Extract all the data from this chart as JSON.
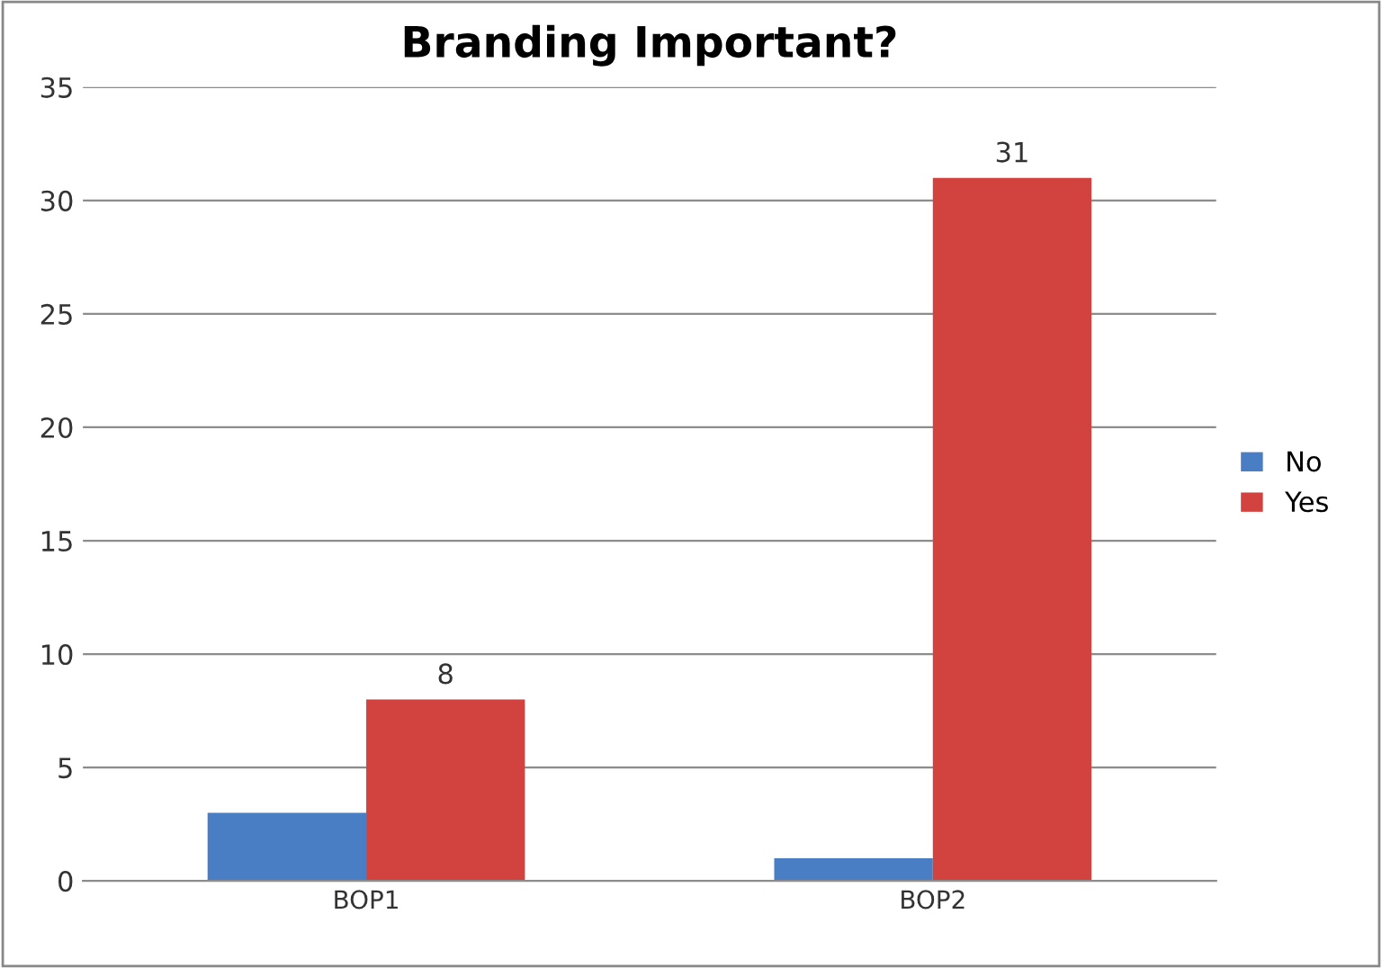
{
  "chart_data": {
    "type": "bar",
    "title": "Branding Important?",
    "categories": [
      "BOP1",
      "BOP2"
    ],
    "series": [
      {
        "name": "No",
        "color": "#4a7ec4",
        "values": [
          3,
          1
        ]
      },
      {
        "name": "Yes",
        "color": "#d2423f",
        "values": [
          8,
          31
        ],
        "value_labels": [
          "8",
          "31"
        ]
      }
    ],
    "ylim": [
      0,
      35
    ],
    "yticks": [
      0,
      5,
      10,
      15,
      20,
      25,
      30,
      35
    ],
    "grid": "y",
    "legend": "right"
  }
}
